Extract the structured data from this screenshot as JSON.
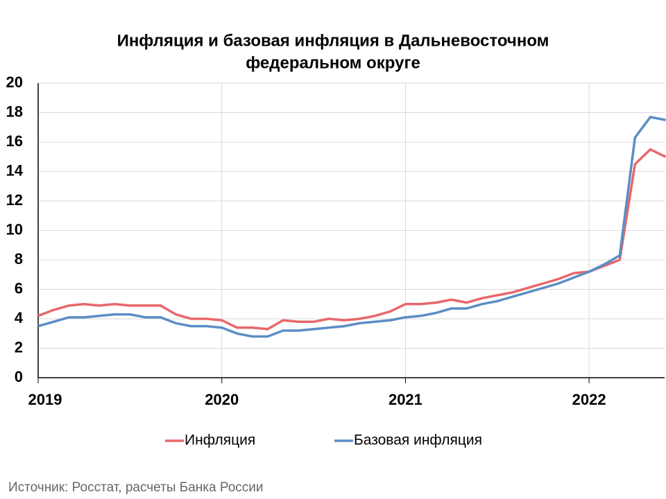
{
  "chart_data": {
    "type": "line",
    "title": [
      "Инфляция и базовая инфляция в Дальневосточном",
      "федеральном округе"
    ],
    "categories": [
      "2019",
      null,
      null,
      null,
      null,
      null,
      null,
      null,
      null,
      null,
      null,
      null,
      "2020",
      null,
      null,
      null,
      null,
      null,
      null,
      null,
      null,
      null,
      null,
      null,
      "2021",
      null,
      null,
      null,
      null,
      null,
      null,
      null,
      null,
      null,
      null,
      null,
      "2022",
      null,
      null,
      null,
      null,
      null
    ],
    "series": [
      {
        "name": "Инфляция",
        "color": "#e8676b",
        "values": [
          4.2,
          4.6,
          4.9,
          5.0,
          4.9,
          5.0,
          4.9,
          4.9,
          4.9,
          4.3,
          4.0,
          4.0,
          3.9,
          3.4,
          3.4,
          3.3,
          3.9,
          3.8,
          3.8,
          4.0,
          3.9,
          4.0,
          4.2,
          4.5,
          5.0,
          5.0,
          5.1,
          5.3,
          5.1,
          5.4,
          5.6,
          5.8,
          6.1,
          6.4,
          6.7,
          7.1,
          7.2,
          7.6,
          8.0,
          14.5,
          15.5,
          15.0
        ]
      },
      {
        "name": "Базовая инфляция",
        "color": "#5b8ec4",
        "values": [
          3.5,
          3.8,
          4.1,
          4.1,
          4.2,
          4.3,
          4.3,
          4.1,
          4.1,
          3.7,
          3.5,
          3.5,
          3.4,
          3.0,
          2.8,
          2.8,
          3.2,
          3.2,
          3.3,
          3.4,
          3.5,
          3.7,
          3.8,
          3.9,
          4.1,
          4.2,
          4.4,
          4.7,
          4.7,
          5.0,
          5.2,
          5.5,
          5.8,
          6.1,
          6.4,
          6.8,
          7.2,
          7.7,
          8.3,
          16.3,
          17.7,
          17.5
        ]
      }
    ],
    "ylim": [
      0,
      20
    ],
    "yticks": [
      0,
      2,
      4,
      6,
      8,
      10,
      12,
      14,
      16,
      18,
      20
    ],
    "grid": true,
    "legend": "bottom",
    "source": "Источник: Росстат, расчеты Банка России"
  }
}
